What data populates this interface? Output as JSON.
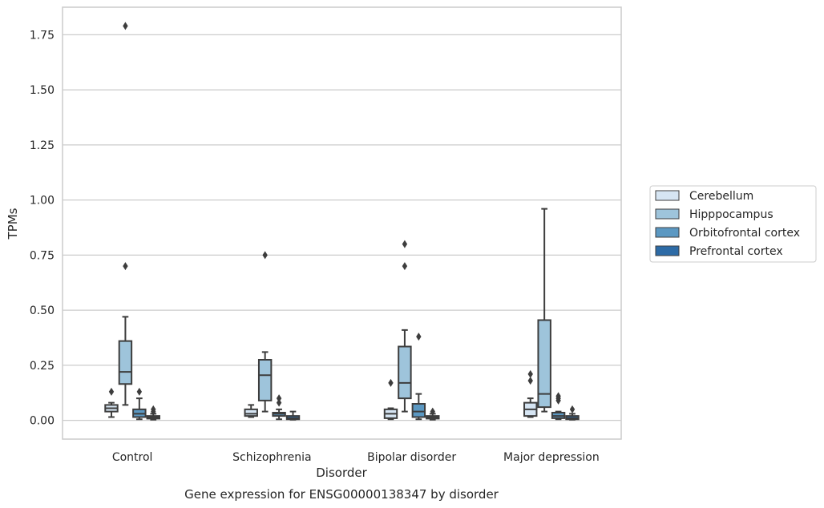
{
  "chart_data": {
    "type": "box",
    "title": "",
    "caption": "Gene expression for ENSG00000138347 by disorder",
    "xlabel": "Disorder",
    "ylabel": "TPMs",
    "ylim": [
      -0.085,
      1.875
    ],
    "yticks": [
      "0.00",
      "0.25",
      "0.50",
      "0.75",
      "1.00",
      "1.25",
      "1.50",
      "1.75"
    ],
    "grid": "horizontal",
    "legend_position": "right",
    "categories": [
      "Control",
      "Schizophrenia",
      "Bipolar disorder",
      "Major depression"
    ],
    "series": [
      {
        "name": "Cerebellum",
        "color": "#d6e5f3",
        "boxes": [
          {
            "whislo": 0.015,
            "q1": 0.04,
            "med": 0.055,
            "q3": 0.07,
            "whishi": 0.08,
            "fliers": [
              0.13
            ]
          },
          {
            "whislo": 0.015,
            "q1": 0.02,
            "med": 0.03,
            "q3": 0.05,
            "whishi": 0.07,
            "fliers": []
          },
          {
            "whislo": 0.005,
            "q1": 0.01,
            "med": 0.03,
            "q3": 0.05,
            "whishi": 0.055,
            "fliers": [
              0.17
            ]
          },
          {
            "whislo": 0.015,
            "q1": 0.02,
            "med": 0.05,
            "q3": 0.08,
            "whishi": 0.1,
            "fliers": [
              0.18,
              0.21
            ]
          }
        ]
      },
      {
        "name": "Hipppocampus",
        "color": "#9ec4db",
        "boxes": [
          {
            "whislo": 0.07,
            "q1": 0.165,
            "med": 0.22,
            "q3": 0.36,
            "whishi": 0.47,
            "fliers": [
              0.7,
              1.79
            ]
          },
          {
            "whislo": 0.04,
            "q1": 0.09,
            "med": 0.205,
            "q3": 0.275,
            "whishi": 0.31,
            "fliers": [
              0.75
            ]
          },
          {
            "whislo": 0.04,
            "q1": 0.1,
            "med": 0.17,
            "q3": 0.335,
            "whishi": 0.41,
            "fliers": [
              0.7,
              0.8
            ]
          },
          {
            "whislo": 0.04,
            "q1": 0.06,
            "med": 0.12,
            "q3": 0.455,
            "whishi": 0.96,
            "fliers": []
          }
        ]
      },
      {
        "name": "Orbitofrontal cortex",
        "color": "#5b98c2",
        "boxes": [
          {
            "whislo": 0.005,
            "q1": 0.015,
            "med": 0.03,
            "q3": 0.05,
            "whishi": 0.1,
            "fliers": [
              0.13
            ]
          },
          {
            "whislo": 0.005,
            "q1": 0.02,
            "med": 0.03,
            "q3": 0.035,
            "whishi": 0.05,
            "fliers": [
              0.08,
              0.1
            ]
          },
          {
            "whislo": 0.005,
            "q1": 0.015,
            "med": 0.04,
            "q3": 0.075,
            "whishi": 0.12,
            "fliers": [
              0.38
            ]
          },
          {
            "whislo": 0.005,
            "q1": 0.01,
            "med": 0.02,
            "q3": 0.035,
            "whishi": 0.04,
            "fliers": [
              0.09,
              0.1,
              0.11
            ]
          }
        ]
      },
      {
        "name": "Prefrontal cortex",
        "color": "#2d6ba6",
        "boxes": [
          {
            "whislo": 0.003,
            "q1": 0.008,
            "med": 0.015,
            "q3": 0.02,
            "whishi": 0.03,
            "fliers": [
              0.04,
              0.05
            ]
          },
          {
            "whislo": 0.003,
            "q1": 0.005,
            "med": 0.01,
            "q3": 0.02,
            "whishi": 0.04,
            "fliers": []
          },
          {
            "whislo": 0.003,
            "q1": 0.008,
            "med": 0.015,
            "q3": 0.02,
            "whishi": 0.03,
            "fliers": [
              0.04
            ]
          },
          {
            "whislo": 0.003,
            "q1": 0.005,
            "med": 0.01,
            "q3": 0.02,
            "whishi": 0.03,
            "fliers": [
              0.05
            ]
          }
        ]
      }
    ]
  }
}
